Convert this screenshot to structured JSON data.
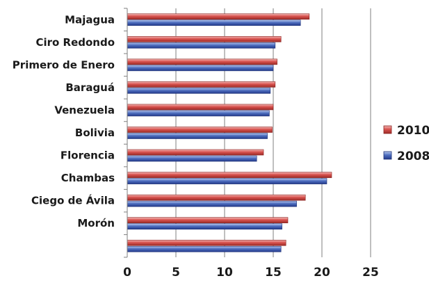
{
  "chart_data": {
    "type": "bar",
    "orientation": "horizontal",
    "categories": [
      "Majagua",
      "Ciro Redondo",
      "Primero de Enero",
      "Baraguá",
      "Venezuela",
      "Bolivia",
      "Florencia",
      "Chambas",
      "Ciego de Ávila",
      "Morón",
      ""
    ],
    "series": [
      {
        "name": "2010",
        "color": "#c0504d",
        "values": [
          18.7,
          15.8,
          15.4,
          15.2,
          15.0,
          14.9,
          14.0,
          21.0,
          18.3,
          16.5,
          16.3
        ]
      },
      {
        "name": "2008",
        "color": "#4f6fb5",
        "values": [
          17.8,
          15.2,
          15.0,
          14.7,
          14.6,
          14.4,
          13.3,
          20.5,
          17.4,
          15.9,
          15.8
        ]
      }
    ],
    "xlim": [
      0,
      25
    ],
    "xticks": [
      "0",
      "5",
      "10",
      "15",
      "20",
      "25"
    ],
    "grid": true,
    "legend": "right"
  }
}
